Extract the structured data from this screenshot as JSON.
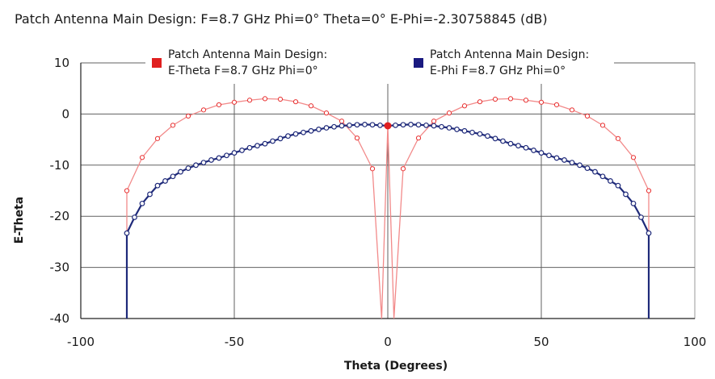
{
  "header": {
    "title": "Patch Antenna Main Design:   F=8.7 GHz  Phi=0°  Theta=0°  E-Phi=-2.30758845 (dB)"
  },
  "chart_data": {
    "type": "line",
    "xlabel": "Theta (Degrees)",
    "ylabel": "E-Theta",
    "xlim": [
      -100,
      100
    ],
    "ylim": [
      -40,
      10
    ],
    "xticks": [
      -100,
      -50,
      0,
      50,
      100
    ],
    "yticks": [
      10,
      0,
      -10,
      -20,
      -30,
      -40
    ],
    "ytick_labels": [
      "10",
      "0",
      "-10",
      "-20",
      "-30",
      "-40"
    ],
    "grid": true,
    "legend_position": "top",
    "series": [
      {
        "name_line1": "Patch Antenna Main Design:",
        "name_line2": "E-Theta  F=8.7 GHz  Phi=0°",
        "color": "#f28a8a",
        "marker_color": "#e83030",
        "x": [
          -85,
          -80,
          -75,
          -70,
          -65,
          -60,
          -55,
          -50,
          -45,
          -40,
          -35,
          -30,
          -25,
          -20,
          -15,
          -10,
          -5,
          -2,
          0,
          2,
          5,
          10,
          15,
          20,
          25,
          30,
          35,
          40,
          45,
          50,
          55,
          60,
          65,
          70,
          75,
          80,
          85
        ],
        "y": [
          -15,
          -8.5,
          -4.8,
          -2.2,
          -0.4,
          0.8,
          1.8,
          2.3,
          2.7,
          3.0,
          2.9,
          2.4,
          1.6,
          0.2,
          -1.4,
          -4.7,
          -10.7,
          -40,
          -2.3,
          -40,
          -10.7,
          -4.7,
          -1.4,
          0.2,
          1.6,
          2.4,
          2.9,
          3.0,
          2.7,
          2.3,
          1.8,
          0.8,
          -0.4,
          -2.2,
          -4.8,
          -8.5,
          -15
        ],
        "markers": [
          true,
          true,
          true,
          true,
          true,
          true,
          true,
          true,
          true,
          true,
          true,
          true,
          true,
          true,
          true,
          true,
          true,
          false,
          true,
          false,
          true,
          true,
          true,
          true,
          true,
          true,
          true,
          true,
          true,
          true,
          true,
          true,
          true,
          true,
          true,
          true,
          true
        ],
        "drop_to_bottom_at_ends": true
      },
      {
        "name_line1": "Patch Antenna Main Design:",
        "name_line2": "E-Phi  F=8.7 GHz  Phi=0°",
        "color": "#1f2a7a",
        "marker_color": "#1f2a7a",
        "x": [
          -85,
          -82.5,
          -80,
          -77.5,
          -75,
          -72.5,
          -70,
          -67.5,
          -65,
          -62.5,
          -60,
          -57.5,
          -55,
          -52.5,
          -50,
          -47.5,
          -45,
          -42.5,
          -40,
          -37.5,
          -35,
          -32.5,
          -30,
          -27.5,
          -25,
          -22.5,
          -20,
          -17.5,
          -15,
          -12.5,
          -10,
          -7.5,
          -5,
          -2.5,
          0,
          2.5,
          5,
          7.5,
          10,
          12.5,
          15,
          17.5,
          20,
          22.5,
          25,
          27.5,
          30,
          32.5,
          35,
          37.5,
          40,
          42.5,
          45,
          47.5,
          50,
          52.5,
          55,
          57.5,
          60,
          62.5,
          65,
          67.5,
          70,
          72.5,
          75,
          77.5,
          80,
          82.5,
          85
        ],
        "y": [
          -23.3,
          -20.2,
          -17.5,
          -15.7,
          -14.0,
          -13.1,
          -12.2,
          -11.3,
          -10.6,
          -10.0,
          -9.5,
          -9.0,
          -8.6,
          -8.1,
          -7.6,
          -7.1,
          -6.6,
          -6.2,
          -5.8,
          -5.3,
          -4.8,
          -4.3,
          -3.9,
          -3.6,
          -3.3,
          -3.0,
          -2.7,
          -2.5,
          -2.3,
          -2.2,
          -2.1,
          -2.05,
          -2.1,
          -2.2,
          -2.3,
          -2.2,
          -2.1,
          -2.05,
          -2.1,
          -2.2,
          -2.3,
          -2.5,
          -2.7,
          -3.0,
          -3.3,
          -3.6,
          -3.9,
          -4.3,
          -4.8,
          -5.3,
          -5.8,
          -6.2,
          -6.6,
          -7.1,
          -7.6,
          -8.1,
          -8.6,
          -9.0,
          -9.5,
          -10.0,
          -10.6,
          -11.3,
          -12.2,
          -13.1,
          -14.0,
          -15.7,
          -17.5,
          -20.2,
          -23.3
        ],
        "drop_to_bottom_at_ends": true
      }
    ],
    "highlight_point": {
      "x": 0,
      "y": -2.3,
      "color": "#e02020"
    }
  }
}
